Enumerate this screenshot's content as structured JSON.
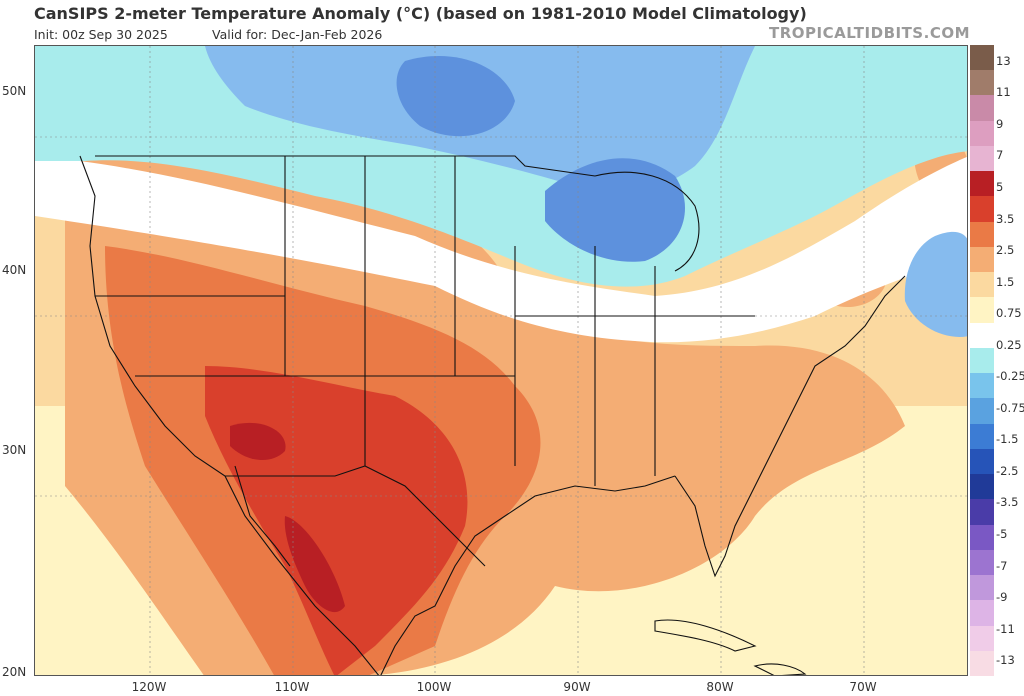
{
  "header": {
    "title": "CanSIPS 2-meter Temperature Anomaly (°C) (based on 1981-2010 Model Climatology)",
    "init": "Init: 00z Sep 30 2025",
    "valid": "Valid for: Dec-Jan-Feb 2026",
    "brand": "TROPICALTIDBITS.COM"
  },
  "axes": {
    "lat_labels": [
      "50N",
      "40N",
      "30N",
      "20N"
    ],
    "lon_labels": [
      "120W",
      "110W",
      "100W",
      "90W",
      "80W",
      "70W"
    ]
  },
  "colorbar": {
    "labels": [
      "13",
      "11",
      "9",
      "7",
      "5",
      "3.5",
      "2.5",
      "1.5",
      "0.75",
      "0.25",
      "-0.25",
      "-0.75",
      "-1.5",
      "-2.5",
      "-3.5",
      "-5",
      "-7",
      "-9",
      "-11",
      "-13"
    ],
    "colors": [
      "#7a5c4a",
      "#a07c6a",
      "#c98aa8",
      "#dd9ec0",
      "#e7b4d2",
      "#b81f24",
      "#d9402c",
      "#ea7a46",
      "#f4ad74",
      "#fbd9a0",
      "#fff4c4",
      "#ffffff",
      "#a8ecec",
      "#79c4ec",
      "#5aa2e0",
      "#3c7cd4",
      "#2654b8",
      "#203a98",
      "#4a3ca8",
      "#7a58c4",
      "#9c74d0",
      "#c098dc",
      "#ddb4e6",
      "#f0cce8",
      "#f8dce4"
    ]
  },
  "map": {
    "region": "Contiguous United States, southern Canada, Mexico and the Caribbean",
    "anomaly_colors": {
      "cold_strong": "#5d91dd",
      "cold": "#86bbee",
      "cool": "#a8ecec",
      "neutral": "#ffffff",
      "mild": "#fff4c4",
      "warm_light": "#fbd9a0",
      "warm": "#f4ad74",
      "warm_strong": "#ea7a46",
      "hot": "#d9402c",
      "hottest": "#b81f24"
    }
  }
}
